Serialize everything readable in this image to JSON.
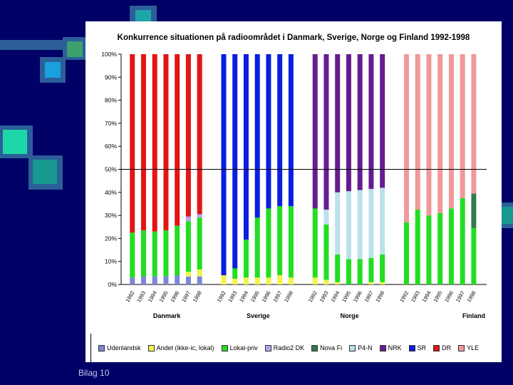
{
  "footer": "Bilag 10",
  "chart_data": {
    "type": "bar",
    "stacked": true,
    "title": "Konkurrence situationen på radioområdet i Danmark, Sverige, Norge og Finland 1992-1998",
    "ylim": [
      0,
      100
    ],
    "yticks": [
      "0%",
      "10%",
      "20%",
      "30%",
      "40%",
      "50%",
      "60%",
      "70%",
      "80%",
      "90%",
      "100%"
    ],
    "reference_line": 50,
    "years": [
      "1992",
      "1993",
      "1994",
      "1995",
      "1996",
      "1997",
      "1998"
    ],
    "groups": [
      {
        "country": "Danmark",
        "stacks": [
          {
            "Udenlandsk": 3,
            "Lokal-priv": 19.5,
            "DR": 77.5
          },
          {
            "Udenlandsk": 3.5,
            "Lokal-priv": 20,
            "DR": 76.5
          },
          {
            "Udenlandsk": 3.5,
            "Lokal-priv": 19.5,
            "DR": 77
          },
          {
            "Udenlandsk": 3.5,
            "Lokal-priv": 20,
            "DR": 76.5
          },
          {
            "Udenlandsk": 4,
            "Lokal-priv": 21.5,
            "DR": 74.5
          },
          {
            "Udenlandsk": 3.5,
            "Andet (ikke-ic, lokal)": 2,
            "Lokal-priv": 22,
            "Radio2 DK": 2,
            "DR": 70.5
          },
          {
            "Udenlandsk": 3.5,
            "Andet (ikke-ic, lokal)": 3,
            "Lokal-priv": 22.5,
            "Radio2 DK": 1.5,
            "DR": 69.5
          }
        ]
      },
      {
        "country": "Sverige",
        "stacks": [
          {
            "Andet (ikke-ic, lokal)": 4,
            "SR": 96
          },
          {
            "Andet (ikke-ic, lokal)": 2.5,
            "Lokal-priv": 4.5,
            "SR": 93
          },
          {
            "Andet (ikke-ic, lokal)": 3,
            "Lokal-priv": 16.5,
            "SR": 80.5
          },
          {
            "Andet (ikke-ic, lokal)": 3,
            "Lokal-priv": 26,
            "SR": 71
          },
          {
            "Andet (ikke-ic, lokal)": 3,
            "Lokal-priv": 30,
            "SR": 67
          },
          {
            "Andet (ikke-ic, lokal)": 4,
            "Lokal-priv": 30,
            "SR": 66
          },
          {
            "Andet (ikke-ic, lokal)": 3,
            "Lokal-priv": 31,
            "SR": 66
          }
        ]
      },
      {
        "country": "Norge",
        "stacks": [
          {
            "Andet (ikke-ic, lokal)": 3,
            "Lokal-priv": 30,
            "NRK": 67
          },
          {
            "Andet (ikke-ic, lokal)": 2,
            "Lokal-priv": 24,
            "P4-N": 6.5,
            "NRK": 67.5
          },
          {
            "Andet (ikke-ic, lokal)": 1,
            "Lokal-priv": 12,
            "P4-N": 27,
            "NRK": 60
          },
          {
            "Lokal-priv": 11,
            "P4-N": 29.5,
            "NRK": 59.5
          },
          {
            "Lokal-priv": 11,
            "P4-N": 30,
            "NRK": 59
          },
          {
            "Andet (ikke-ic, lokal)": 1,
            "Lokal-priv": 10.5,
            "P4-N": 30,
            "NRK": 58.5
          },
          {
            "Andet (ikke-ic, lokal)": 1,
            "Lokal-priv": 12,
            "P4-N": 29,
            "NRK": 58
          }
        ]
      },
      {
        "country": "Finland",
        "stacks": [
          {
            "Lokal-priv": 27,
            "YLE": 73
          },
          {
            "Lokal-priv": 32.5,
            "YLE": 67.5
          },
          {
            "Lokal-priv": 30,
            "YLE": 70
          },
          {
            "Lokal-priv": 31,
            "YLE": 69
          },
          {
            "Lokal-priv": 33,
            "YLE": 67
          },
          {
            "Lokal-priv": 37.5,
            "YLE": 62.5
          },
          {
            "Lokal-priv": 24.5,
            "Nova Fi": 15,
            "YLE": 60.5
          }
        ]
      }
    ],
    "series_order": [
      "Udenlandsk",
      "Andet (ikke-ic, lokal)",
      "Lokal-priv",
      "Radio2 DK",
      "Nova Fi",
      "P4-N",
      "NRK",
      "SR",
      "DR",
      "YLE"
    ],
    "legend": [
      {
        "name": "Udenlandsk",
        "color": "#7d86d6"
      },
      {
        "name": "Andet (ikke-ic, lokal)",
        "color": "#f2f24a"
      },
      {
        "name": "Lokal-priv",
        "color": "#22dd22"
      },
      {
        "name": "Radio2 DK",
        "color": "#b3a4ec"
      },
      {
        "name": "Nova Fi",
        "color": "#2e7d4a"
      },
      {
        "name": "P4-N",
        "color": "#b9e1ea"
      },
      {
        "name": "NRK",
        "color": "#661c8f"
      },
      {
        "name": "SR",
        "color": "#0a1ee0"
      },
      {
        "name": "DR",
        "color": "#e51414"
      },
      {
        "name": "YLE",
        "color": "#f0989a"
      }
    ]
  }
}
